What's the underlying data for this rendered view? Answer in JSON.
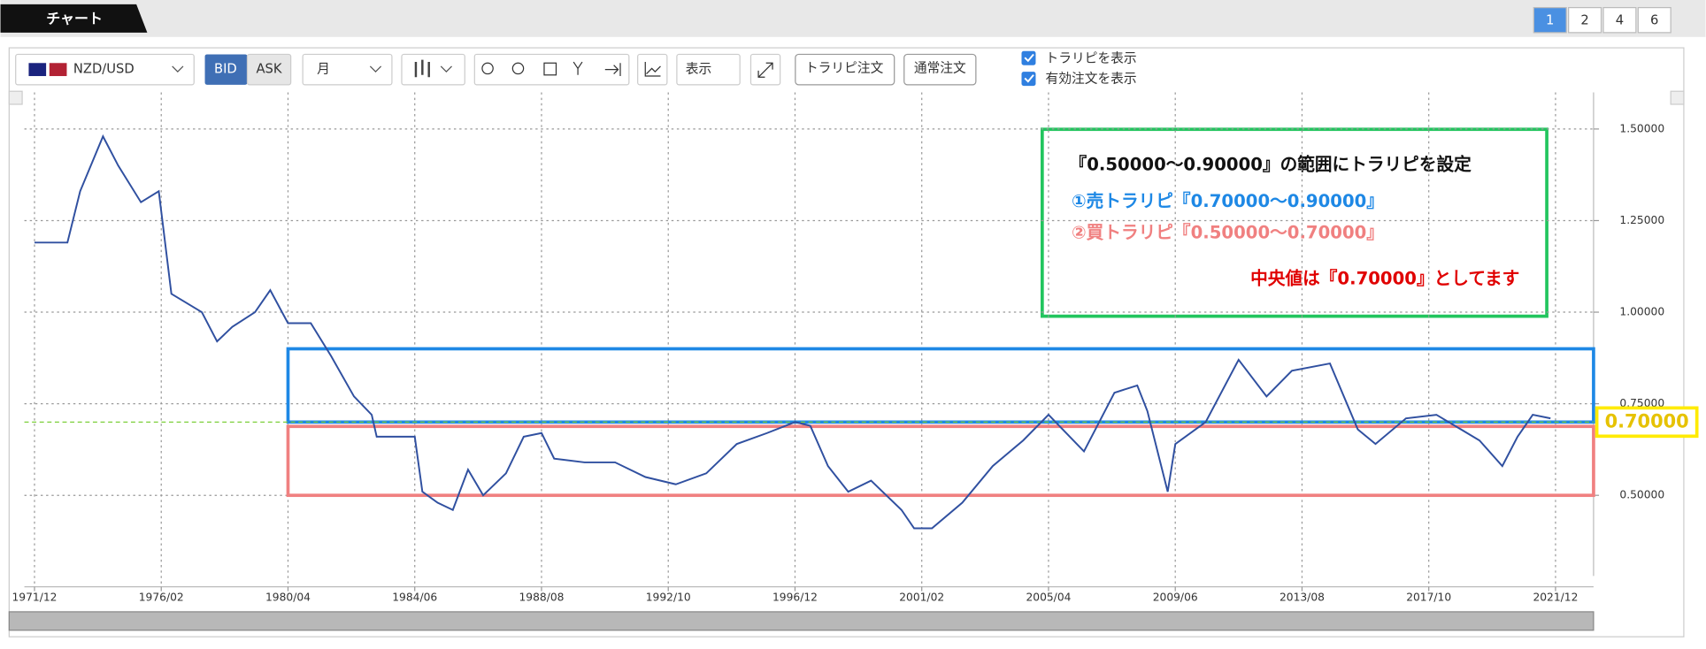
{
  "tab": {
    "title": "チャート"
  },
  "pages": [
    "1",
    "2",
    "4",
    "6"
  ],
  "toolbar": {
    "symbol": "NZD/USD",
    "bid": "BID",
    "ask": "ASK",
    "period": "月",
    "display": "表示",
    "trarepi_order": "トラリピ注文",
    "normal_order": "通常注文",
    "show_trarepi": "トラリピを表示",
    "show_orders": "有効注文を表示"
  },
  "annotation": {
    "title": "『0.50000～0.90000』の範囲にトラリピを設定",
    "sell": "①売トラリピ『0.70000～0.90000』",
    "buy": "②買トラリピ『0.50000～0.70000』",
    "mid": "中央値は『0.70000』としてます"
  },
  "chart_data": {
    "type": "line",
    "x": [
      "1971/12",
      "1973/01",
      "1973/06",
      "1974/03",
      "1974/09",
      "1975/06",
      "1976/01",
      "1976/06",
      "1977/06",
      "1977/12",
      "1978/06",
      "1979/03",
      "1979/09",
      "1980/04",
      "1981/01",
      "1981/09",
      "1982/06",
      "1983/01",
      "1983/03",
      "1984/06",
      "1984/09",
      "1985/03",
      "1985/09",
      "1986/03",
      "1986/09",
      "1987/06",
      "1988/01",
      "1988/08",
      "1989/01",
      "1990/01",
      "1991/01",
      "1992/01",
      "1993/01",
      "1994/01",
      "1995/01",
      "1996/01",
      "1996/12",
      "1997/06",
      "1998/01",
      "1998/09",
      "1999/06",
      "2000/06",
      "2000/11",
      "2001/06",
      "2002/06",
      "2003/06",
      "2004/06",
      "2005/04",
      "2006/06",
      "2007/06",
      "2008/03",
      "2008/07",
      "2009/03",
      "2009/06",
      "2010/06",
      "2011/07",
      "2012/06",
      "2013/04",
      "2014/07",
      "2015/06",
      "2016/01",
      "2017/01",
      "2018/01",
      "2019/06",
      "2020/03",
      "2020/09",
      "2021/03",
      "2021/10"
    ],
    "series": [
      {
        "name": "NZD/USD",
        "color": "#3050a0",
        "values": [
          1.19,
          1.19,
          1.33,
          1.48,
          1.4,
          1.3,
          1.33,
          1.05,
          1.0,
          0.92,
          0.96,
          1.0,
          1.06,
          0.97,
          0.97,
          0.88,
          0.77,
          0.72,
          0.66,
          0.66,
          0.51,
          0.48,
          0.46,
          0.57,
          0.5,
          0.56,
          0.66,
          0.67,
          0.6,
          0.59,
          0.59,
          0.55,
          0.53,
          0.56,
          0.64,
          0.67,
          0.7,
          0.69,
          0.58,
          0.51,
          0.54,
          0.46,
          0.41,
          0.41,
          0.48,
          0.58,
          0.65,
          0.72,
          0.62,
          0.78,
          0.8,
          0.73,
          0.51,
          0.64,
          0.7,
          0.87,
          0.77,
          0.84,
          0.86,
          0.68,
          0.64,
          0.71,
          0.72,
          0.65,
          0.58,
          0.66,
          0.72,
          0.71
        ]
      }
    ],
    "xlim": [
      "1971/08",
      "2023/03"
    ],
    "xticks": [
      "1971/12",
      "1976/02",
      "1980/04",
      "1984/06",
      "1988/08",
      "1992/10",
      "1996/12",
      "2001/02",
      "2005/04",
      "2009/06",
      "2013/08",
      "2017/10",
      "2021/12"
    ],
    "ylim": [
      0.28,
      1.6
    ],
    "yticks": [
      {
        "value": 0.5,
        "label": "0.50000"
      },
      {
        "value": 0.75,
        "label": "0.75000"
      },
      {
        "value": 1.0,
        "label": "1.00000"
      },
      {
        "value": 1.25,
        "label": "1.25000"
      },
      {
        "value": 1.5,
        "label": "1.50000"
      }
    ],
    "grid": true,
    "last_price": {
      "value": 0.7,
      "label": "0.70000"
    },
    "bands": [
      {
        "range": [
          0.7,
          0.9
        ],
        "start": "1980/04",
        "color": "#1e88e5"
      },
      {
        "range": [
          0.5,
          0.7
        ],
        "start": "1980/04",
        "color": "#f08080"
      }
    ]
  }
}
